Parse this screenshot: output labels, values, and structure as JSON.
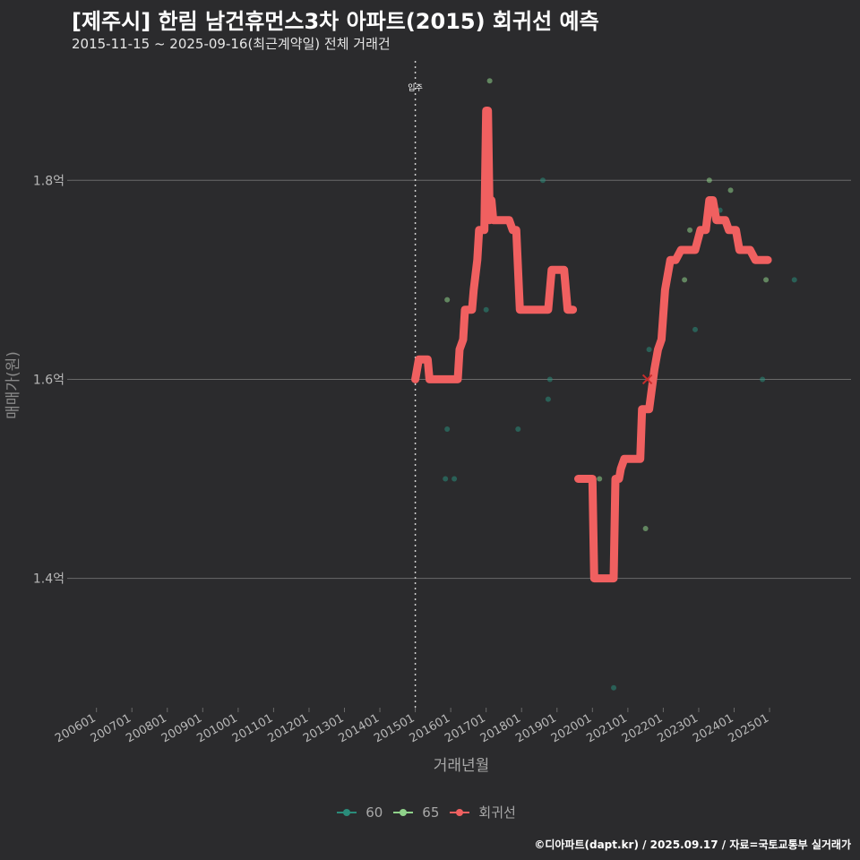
{
  "title": "[제주시] 한림 남건휴먼스3차 아파트(2015) 회귀선 예측",
  "subtitle": "2015-11-15 ~ 2025-09-16(최근계약일) 전체 거래건",
  "caption": "©디아파트(dapt.kr) / 2025.09.17 / 자료=국토교통부 실거래가",
  "chart_data": {
    "type": "scatter",
    "title": "[제주시] 한림 남건휴먼스3차 아파트(2015) 회귀선 예측",
    "xlabel": "거래년월",
    "ylabel": "매매가(원)",
    "xlim": [
      2005.3,
      2027.3
    ],
    "ylim": [
      1.27,
      1.92
    ],
    "x_ticks": [
      2006,
      2007,
      2008,
      2009,
      2010,
      2011,
      2012,
      2013,
      2014,
      2015,
      2016,
      2017,
      2018,
      2019,
      2020,
      2021,
      2022,
      2023,
      2024,
      2025
    ],
    "x_tick_labels": [
      "200601",
      "200701",
      "200801",
      "200901",
      "201001",
      "201101",
      "201201",
      "201301",
      "201401",
      "201501",
      "201601",
      "201701",
      "201801",
      "201901",
      "202001",
      "202101",
      "202201",
      "202301",
      "202401",
      "202501"
    ],
    "y_ticks": [
      1.4,
      1.6,
      1.8
    ],
    "y_tick_labels": [
      "1.4억",
      "1.6억",
      "1.8억"
    ],
    "annotation": {
      "text": "입주",
      "x": 2015.0
    },
    "series": [
      {
        "name": "60",
        "color": "#2a8c7a",
        "kind": "points",
        "points": [
          [
            2015.9,
            1.55
          ],
          [
            2015.85,
            1.5
          ],
          [
            2016.1,
            1.5
          ],
          [
            2017.0,
            1.67
          ],
          [
            2018.8,
            1.6
          ],
          [
            2018.75,
            1.58
          ],
          [
            2017.9,
            1.55
          ],
          [
            2018.6,
            1.8
          ],
          [
            2020.6,
            1.29
          ],
          [
            2021.6,
            1.63
          ],
          [
            2022.9,
            1.65
          ],
          [
            2023.6,
            1.77
          ],
          [
            2024.8,
            1.6
          ],
          [
            2025.7,
            1.7
          ]
        ]
      },
      {
        "name": "65",
        "color": "#8fd18a",
        "kind": "points",
        "points": [
          [
            2015.8,
            1.6
          ],
          [
            2015.9,
            1.68
          ],
          [
            2017.1,
            1.9
          ],
          [
            2020.2,
            1.5
          ],
          [
            2021.5,
            1.45
          ],
          [
            2022.6,
            1.7
          ],
          [
            2022.75,
            1.75
          ],
          [
            2023.3,
            1.8
          ],
          [
            2023.5,
            1.77
          ],
          [
            2023.9,
            1.79
          ],
          [
            2024.9,
            1.7
          ]
        ]
      },
      {
        "name": "회귀선",
        "color": "#f06060",
        "kind": "line",
        "segments": [
          [
            [
              2015.0,
              1.6
            ],
            [
              2015.1,
              1.62
            ],
            [
              2015.35,
              1.62
            ],
            [
              2015.4,
              1.6
            ],
            [
              2016.2,
              1.6
            ],
            [
              2016.25,
              1.63
            ],
            [
              2016.35,
              1.64
            ],
            [
              2016.4,
              1.67
            ],
            [
              2016.6,
              1.67
            ],
            [
              2016.65,
              1.69
            ],
            [
              2016.75,
              1.72
            ],
            [
              2016.8,
              1.75
            ],
            [
              2016.95,
              1.75
            ],
            [
              2017.0,
              1.87
            ],
            [
              2017.05,
              1.87
            ],
            [
              2017.1,
              1.76
            ],
            [
              2017.15,
              1.78
            ],
            [
              2017.2,
              1.76
            ],
            [
              2017.65,
              1.76
            ],
            [
              2017.75,
              1.75
            ],
            [
              2017.85,
              1.75
            ],
            [
              2017.95,
              1.67
            ],
            [
              2018.4,
              1.67
            ],
            [
              2018.5,
              1.67
            ],
            [
              2018.6,
              1.67
            ],
            [
              2018.75,
              1.67
            ],
            [
              2018.85,
              1.71
            ],
            [
              2019.2,
              1.71
            ],
            [
              2019.3,
              1.67
            ],
            [
              2019.45,
              1.67
            ]
          ],
          [
            [
              2019.6,
              1.5
            ],
            [
              2020.0,
              1.5
            ],
            [
              2020.05,
              1.4
            ],
            [
              2020.6,
              1.4
            ],
            [
              2020.65,
              1.5
            ],
            [
              2020.75,
              1.5
            ],
            [
              2020.8,
              1.51
            ],
            [
              2020.9,
              1.52
            ],
            [
              2021.35,
              1.52
            ],
            [
              2021.4,
              1.57
            ],
            [
              2021.6,
              1.57
            ],
            [
              2021.75,
              1.61
            ],
            [
              2021.85,
              1.63
            ],
            [
              2021.95,
              1.64
            ],
            [
              2022.05,
              1.69
            ],
            [
              2022.2,
              1.72
            ],
            [
              2022.35,
              1.72
            ],
            [
              2022.5,
              1.73
            ],
            [
              2022.9,
              1.73
            ],
            [
              2023.05,
              1.75
            ],
            [
              2023.2,
              1.75
            ],
            [
              2023.3,
              1.78
            ],
            [
              2023.4,
              1.78
            ],
            [
              2023.5,
              1.76
            ],
            [
              2023.75,
              1.76
            ],
            [
              2023.85,
              1.75
            ],
            [
              2024.05,
              1.75
            ],
            [
              2024.15,
              1.73
            ],
            [
              2024.45,
              1.73
            ],
            [
              2024.6,
              1.72
            ],
            [
              2024.95,
              1.72
            ]
          ]
        ]
      }
    ],
    "markers": [
      {
        "kind": "x",
        "x": 2021.55,
        "y": 1.6,
        "color": "#c82c2c"
      }
    ],
    "legend": {
      "position": "bottom",
      "entries": [
        "60",
        "65",
        "회귀선"
      ]
    }
  }
}
